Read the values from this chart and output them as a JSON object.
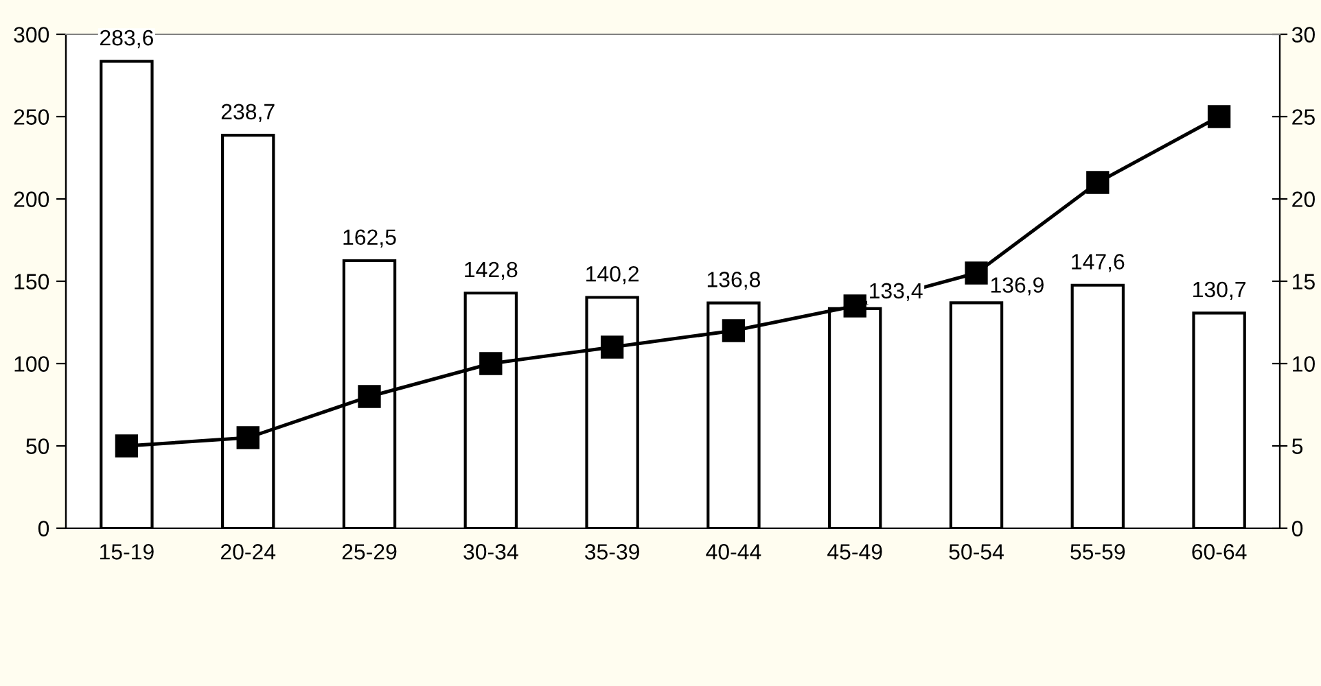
{
  "chart_data": {
    "type": "bar",
    "categories": [
      "15-19",
      "20-24",
      "25-29",
      "30-34",
      "35-39",
      "40-44",
      "45-49",
      "50-54",
      "55-59",
      "60-64"
    ],
    "series": [
      {
        "color": "#ffffff",
        "values": [
          283.6,
          238.7,
          162.5,
          142.8,
          140.2,
          136.8,
          133.4,
          136.9,
          147.6,
          130.7
        ],
        "value_labels": [
          "283,6",
          "238,7",
          "162,5",
          "142,8",
          "140,2",
          "136,8",
          "133,4",
          "136,9",
          "147,6",
          "130,7"
        ]
      },
      {
        "type": "line",
        "axis": "y2",
        "color": "#000000",
        "marker": "square",
        "line_style": "solid",
        "values": [
          5,
          5.5,
          8,
          10,
          11,
          12,
          13.5,
          15.5,
          21,
          25
        ]
      }
    ],
    "ylim": [
      0,
      300
    ],
    "yticks": [
      0,
      50,
      100,
      150,
      200,
      250,
      300
    ],
    "y2lim": [
      0,
      30
    ],
    "y2ticks": [
      0,
      5,
      10,
      15,
      20,
      25,
      30
    ],
    "grid": false,
    "legend": false
  }
}
